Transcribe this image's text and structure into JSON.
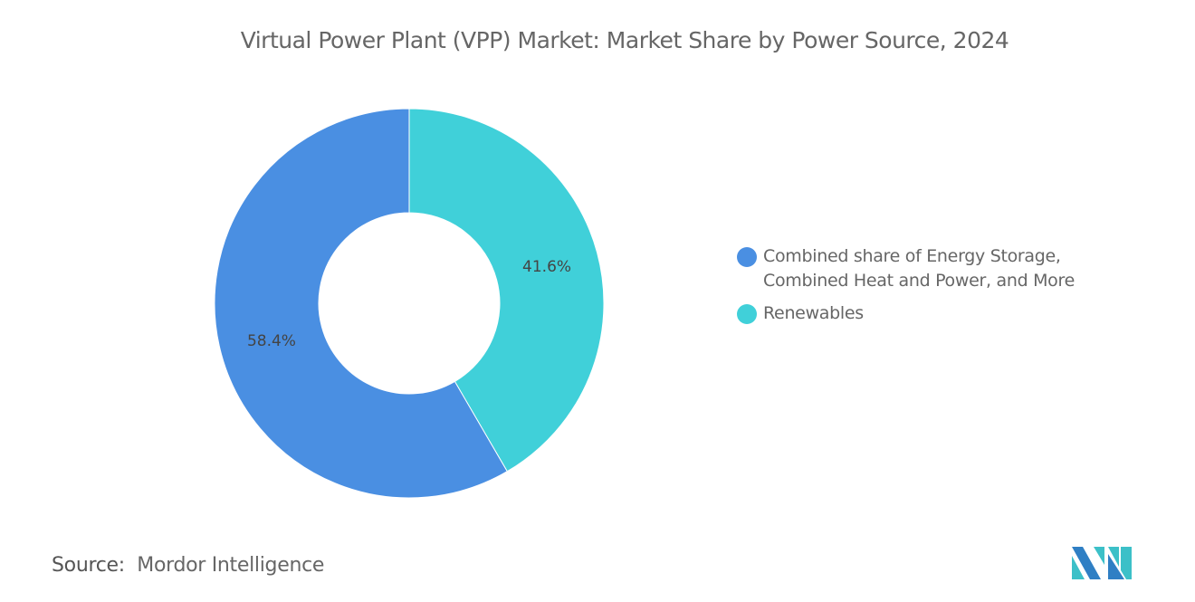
{
  "chart_data": {
    "type": "pie",
    "variant": "donut",
    "title": "Virtual Power Plant (VPP) Market: Market Share by Power Source, 2024",
    "slices": [
      {
        "name": "Renewables",
        "value": 41.6,
        "label": "41.6%",
        "color": "#40d0d9"
      },
      {
        "name": "Combined share of Energy Storage, Combined Heat and Power, and More",
        "value": 58.4,
        "label": "58.4%",
        "color": "#4a8fe2"
      }
    ],
    "legend": {
      "placement": "right",
      "entries": [
        "Combined share of Energy Storage, Combined Heat and Power, and More",
        "Renewables"
      ]
    }
  },
  "source": {
    "label": "Source:",
    "value": "Mordor Intelligence"
  },
  "logo_text": "Mordor Intelligence"
}
